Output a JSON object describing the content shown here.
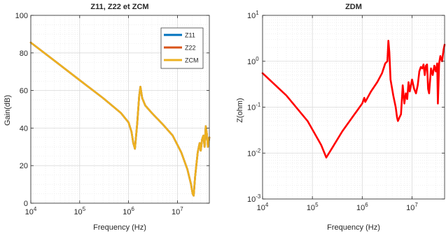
{
  "chart_data": [
    {
      "type": "line",
      "title": "Z11, Z22 et ZCM",
      "xlabel": "Frequency (Hz)",
      "ylabel": "Gain(dB)",
      "x_scale": "log",
      "y_scale": "linear",
      "xlim": [
        10000,
        45000000
      ],
      "ylim": [
        0,
        100
      ],
      "x_ticks": [
        10000,
        100000,
        1000000,
        10000000
      ],
      "x_tick_labels": [
        {
          "base": "10",
          "exp": "4"
        },
        {
          "base": "10",
          "exp": "5"
        },
        {
          "base": "10",
          "exp": "6"
        },
        {
          "base": "10",
          "exp": "7"
        }
      ],
      "y_ticks": [
        0,
        20,
        40,
        60,
        80,
        100
      ],
      "y_tick_labels": [
        "0",
        "20",
        "40",
        "60",
        "80",
        "100"
      ],
      "grid": true,
      "minor_grid": true,
      "legend": "top-right",
      "series": [
        {
          "name": "Z11",
          "color": "#0072bd",
          "x": [
            10000,
            30000,
            100000,
            300000,
            700000,
            1000000,
            1150000,
            1250000,
            1350000,
            1500000,
            1650000,
            1750000,
            1900000,
            2200000,
            3000000,
            5000000,
            8000000,
            12000000,
            16000000,
            19000000,
            20500000,
            21500000,
            23000000,
            26000000,
            28500000,
            30000000,
            32000000,
            34000000,
            36000000,
            38000000,
            40000000,
            42000000,
            45000000
          ],
          "y": [
            85.5,
            76,
            65.5,
            56,
            48,
            43,
            38,
            32,
            29,
            42,
            57,
            62,
            56,
            52,
            48,
            42,
            36,
            27,
            18,
            10,
            5,
            4,
            14,
            27,
            32,
            28,
            34,
            36,
            30,
            41,
            37,
            30,
            35
          ]
        },
        {
          "name": "Z22",
          "color": "#d95319",
          "x": [
            10000,
            30000,
            100000,
            300000,
            700000,
            1000000,
            1150000,
            1250000,
            1350000,
            1500000,
            1650000,
            1750000,
            1900000,
            2200000,
            3000000,
            5000000,
            8000000,
            12000000,
            16000000,
            19000000,
            20500000,
            21500000,
            23000000,
            26000000,
            28500000,
            30000000,
            32000000,
            34000000,
            36000000,
            38000000,
            40000000,
            42000000,
            45000000
          ],
          "y": [
            85.5,
            76,
            65.5,
            56,
            48,
            43,
            38,
            32,
            29,
            42,
            57,
            62,
            56,
            52,
            48,
            42,
            36,
            27,
            18,
            10,
            5,
            4,
            14,
            27,
            32,
            28,
            34,
            36,
            30,
            41,
            37,
            30,
            35
          ]
        },
        {
          "name": "ZCM",
          "color": "#edb120",
          "x": [
            10000,
            30000,
            100000,
            300000,
            700000,
            1000000,
            1150000,
            1250000,
            1350000,
            1500000,
            1650000,
            1750000,
            1900000,
            2200000,
            3000000,
            5000000,
            8000000,
            12000000,
            16000000,
            19000000,
            20500000,
            21500000,
            23000000,
            26000000,
            28500000,
            30000000,
            32000000,
            34000000,
            36000000,
            38000000,
            40000000,
            42000000,
            45000000
          ],
          "y": [
            85.5,
            76,
            65.5,
            56,
            48,
            43,
            38,
            32,
            29,
            42,
            57,
            62,
            56,
            52,
            48,
            42,
            36,
            27,
            18,
            10,
            5,
            4,
            14,
            27,
            32,
            28,
            34,
            36,
            30,
            41,
            37,
            30,
            35
          ]
        }
      ]
    },
    {
      "type": "line",
      "title": "ZDM",
      "xlabel": "Frequency (Hz)",
      "ylabel": "Z(ohm)",
      "x_scale": "log",
      "y_scale": "log",
      "xlim": [
        10000,
        45000000
      ],
      "ylim": [
        0.001,
        10
      ],
      "x_ticks": [
        10000,
        100000,
        1000000,
        10000000
      ],
      "x_tick_labels": [
        {
          "base": "10",
          "exp": "4"
        },
        {
          "base": "10",
          "exp": "5"
        },
        {
          "base": "10",
          "exp": "6"
        },
        {
          "base": "10",
          "exp": "7"
        }
      ],
      "y_ticks": [
        0.001,
        0.01,
        0.1,
        1,
        10
      ],
      "y_tick_labels": [
        {
          "base": "10",
          "exp": "-3"
        },
        {
          "base": "10",
          "exp": "-2"
        },
        {
          "base": "10",
          "exp": "-1"
        },
        {
          "base": "10",
          "exp": "0"
        },
        {
          "base": "10",
          "exp": "1"
        }
      ],
      "grid": true,
      "minor_grid": true,
      "series": [
        {
          "color": "#ff0000",
          "x": [
            10000,
            30000,
            80000,
            150000,
            190000,
            250000,
            400000,
            700000,
            1000000,
            1100000,
            1150000,
            1500000,
            2000000,
            2500000,
            2900000,
            3200000,
            3350000,
            3500000,
            3700000,
            4200000,
            4700000,
            5000000,
            5200000,
            5600000,
            6000000,
            6500000,
            7000000,
            7500000,
            8000000,
            8500000,
            9000000,
            10000000,
            11000000,
            12000000,
            13000000,
            14000000,
            15000000,
            16000000,
            17000000,
            18000000,
            19000000,
            20000000,
            21000000,
            22000000,
            24000000,
            26000000,
            28000000,
            30000000,
            32000000,
            33000000,
            35000000,
            37000000,
            40000000,
            43000000,
            45000000
          ],
          "y": [
            0.55,
            0.18,
            0.05,
            0.015,
            0.008,
            0.013,
            0.03,
            0.07,
            0.12,
            0.16,
            0.13,
            0.22,
            0.35,
            0.55,
            0.9,
            1.0,
            2.8,
            1.6,
            0.4,
            0.18,
            0.1,
            0.06,
            0.05,
            0.06,
            0.07,
            0.3,
            0.12,
            0.2,
            0.15,
            0.35,
            0.22,
            0.4,
            0.25,
            0.2,
            0.3,
            0.6,
            0.75,
            0.7,
            0.85,
            0.5,
            0.8,
            0.85,
            0.25,
            0.2,
            0.7,
            0.5,
            0.8,
            0.6,
            0.9,
            0.12,
            0.9,
            1.3,
            1.0,
            1.8,
            2.3
          ]
        }
      ]
    }
  ]
}
